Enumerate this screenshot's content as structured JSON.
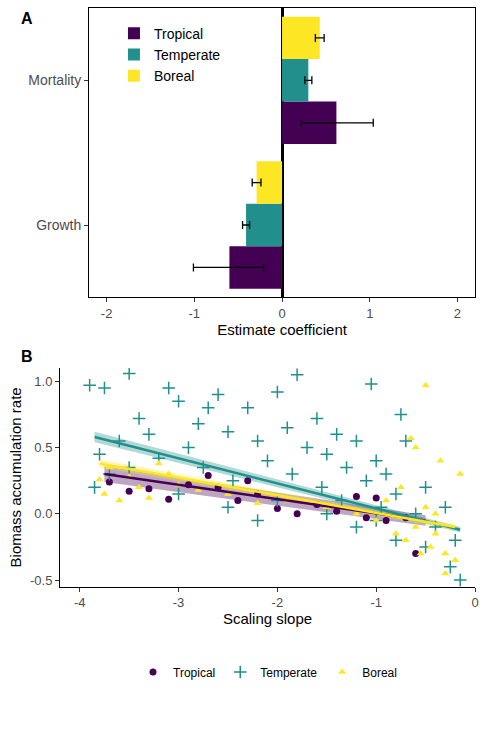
{
  "chart_data": [
    {
      "type": "bar",
      "label": "A",
      "orientation": "horizontal",
      "legend": "top left",
      "grid": false,
      "x_label": "Estimate coefficient",
      "categories": [
        "Growth",
        "Mortality"
      ],
      "xlim": [
        -2.2,
        2.2
      ],
      "xticks": [
        -2,
        -1,
        0,
        1,
        2
      ],
      "series": [
        {
          "name": "Tropical",
          "color": "#440154",
          "values": [
            -0.6,
            0.62
          ],
          "error_minus": [
            0.41,
            0.4
          ],
          "error_plus": [
            0.39,
            0.42
          ]
        },
        {
          "name": "Temperate",
          "color": "#21908C",
          "values": [
            -0.41,
            0.3
          ],
          "error_minus": [
            0.04,
            0.04
          ],
          "error_plus": [
            0.04,
            0.04
          ]
        },
        {
          "name": "Boreal",
          "color": "#FDE725",
          "values": [
            -0.29,
            0.43
          ],
          "error_minus": [
            0.05,
            0.05
          ],
          "error_plus": [
            0.05,
            0.05
          ]
        }
      ]
    },
    {
      "type": "scatter",
      "label": "B",
      "legend": "bottom",
      "grid": false,
      "x_label": "Scaling slope",
      "y_label": "Biomass accumulation rate",
      "xlim": [
        -4.2,
        0
      ],
      "xticks": [
        -4,
        -3,
        -2,
        -1,
        0
      ],
      "ylim": [
        -0.55,
        1.1
      ],
      "yticks": [
        -0.5,
        {
          "value": 0,
          "label": "0.0"
        },
        0.5,
        {
          "value": 1,
          "label": "1.0"
        }
      ],
      "series": [
        {
          "name": "Tropical",
          "color": "#440154",
          "marker": "circle",
          "x": [
            -3.7,
            -3.5,
            -3.3,
            -3.1,
            -2.9,
            -2.7,
            -2.6,
            -2.4,
            -2.2,
            -2.0,
            -1.8,
            -1.6,
            -1.4,
            -1.2,
            -1.0,
            -0.9,
            -0.7,
            -0.6,
            -2.3,
            -1.1
          ],
          "values": [
            0.24,
            0.17,
            0.19,
            0.11,
            0.22,
            0.29,
            0.2,
            0.1,
            0.15,
            0.04,
            0.0,
            0.07,
            0.02,
            0.13,
            0.12,
            -0.05,
            -0.03,
            -0.3,
            0.25,
            -0.03
          ],
          "fit": {
            "x": [
              -3.75,
              -0.5
            ],
            "values": [
              0.3,
              -0.05
            ],
            "ci_lower": [
              0.24,
              -0.09
            ],
            "ci_upper": [
              0.36,
              -0.01
            ]
          }
        },
        {
          "name": "Temperate",
          "color": "#21908C",
          "marker": "cross",
          "x": [
            -3.9,
            -3.75,
            -3.5,
            -3.6,
            -3.8,
            -3.7,
            -3.4,
            -3.3,
            -3.2,
            -3.1,
            -3.0,
            -2.9,
            -2.8,
            -2.75,
            -2.6,
            -2.5,
            -2.45,
            -2.3,
            -2.2,
            -2.1,
            -2.0,
            -1.9,
            -1.85,
            -1.8,
            -1.7,
            -1.6,
            -1.55,
            -1.5,
            -1.4,
            -1.35,
            -1.3,
            -1.2,
            -1.1,
            -1.0,
            -0.95,
            -0.9,
            -0.8,
            -0.7,
            -0.6,
            -0.5,
            -0.4,
            -0.3,
            -0.2,
            -0.15,
            -0.25,
            -0.5,
            -1.0,
            -1.5,
            -2.0,
            -2.5,
            -3.0,
            -3.5,
            -3.85,
            -2.2,
            -1.2,
            -0.8,
            -2.7,
            -1.05,
            -0.75
          ],
          "values": [
            0.97,
            0.95,
            1.06,
            0.55,
            0.45,
            0.3,
            0.72,
            0.6,
            0.42,
            0.95,
            0.85,
            0.5,
            0.68,
            0.35,
            0.9,
            0.62,
            0.25,
            0.8,
            0.55,
            0.4,
            0.92,
            0.65,
            0.3,
            1.05,
            0.5,
            0.72,
            0.2,
            0.45,
            0.6,
            0.1,
            0.35,
            0.55,
            0.25,
            0.4,
            0.05,
            0.3,
            0.15,
            0.55,
            0.0,
            0.2,
            -0.1,
            0.05,
            -0.2,
            -0.5,
            -0.4,
            -0.25,
            -0.05,
            0.0,
            0.1,
            0.05,
            0.15,
            0.35,
            0.2,
            -0.05,
            -0.1,
            -0.2,
            0.8,
            0.98,
            0.75
          ],
          "fit": {
            "x": [
              -3.85,
              -0.15
            ],
            "values": [
              0.58,
              -0.12
            ],
            "ci_lower": [
              0.54,
              -0.14
            ],
            "ci_upper": [
              0.62,
              -0.1
            ]
          }
        },
        {
          "name": "Boreal",
          "color": "#FDE725",
          "marker": "triangle",
          "x": [
            -3.8,
            -3.75,
            -3.7,
            -3.6,
            -3.5,
            -3.4,
            -3.3,
            -3.2,
            -3.1,
            -3.0,
            -2.8,
            -2.5,
            -2.2,
            -1.9,
            -1.5,
            -1.2,
            -1.0,
            -0.9,
            -0.8,
            -0.75,
            -0.7,
            -0.65,
            -0.6,
            -0.55,
            -0.5,
            -0.45,
            -0.4,
            -0.35,
            -0.3,
            -0.25,
            -0.2,
            -0.15,
            -0.5,
            -0.6,
            -0.3,
            -0.4
          ],
          "values": [
            0.26,
            0.15,
            0.35,
            0.1,
            0.28,
            0.2,
            0.12,
            0.38,
            0.3,
            0.22,
            0.18,
            0.15,
            0.08,
            0.1,
            0.05,
            0.0,
            -0.05,
            0.1,
            -0.15,
            0.2,
            -0.2,
            0.57,
            -0.1,
            -0.3,
            0.05,
            -0.25,
            -0.15,
            0.4,
            -0.3,
            -0.1,
            -0.35,
            0.3,
            0.97,
            0.5,
            -0.45,
            0.0
          ],
          "fit": {
            "x": [
              -3.8,
              -0.2
            ],
            "values": [
              0.38,
              -0.1
            ],
            "ci_lower": [
              0.35,
              -0.12
            ],
            "ci_upper": [
              0.41,
              -0.08
            ]
          }
        }
      ]
    }
  ]
}
